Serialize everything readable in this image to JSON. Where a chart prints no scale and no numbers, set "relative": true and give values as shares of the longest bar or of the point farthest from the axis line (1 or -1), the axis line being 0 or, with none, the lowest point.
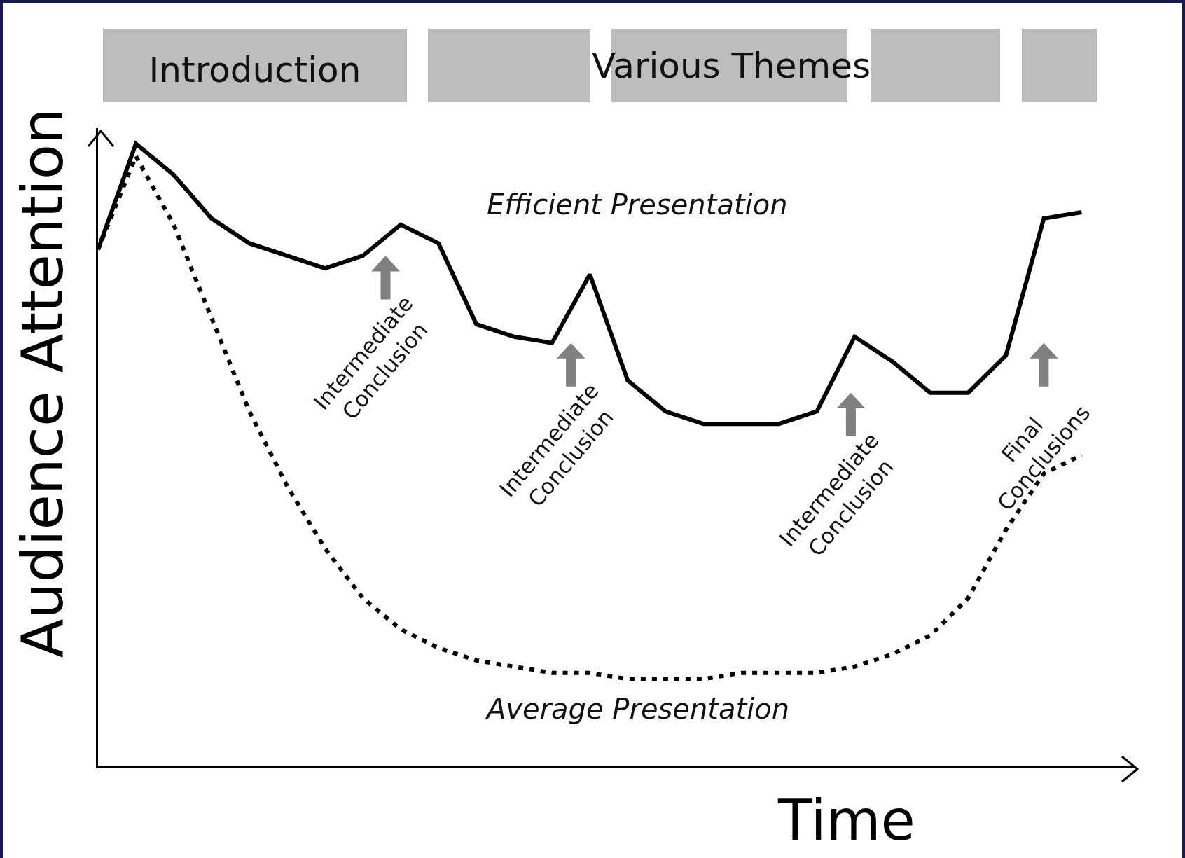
{
  "chart_data": {
    "type": "line",
    "relative": true,
    "ylabel": "Audience Attention",
    "xlabel": "Time",
    "categories": [
      null,
      null,
      null,
      null,
      null,
      null,
      null,
      null,
      null,
      null,
      null,
      null,
      null,
      null,
      null,
      null,
      null,
      null,
      null,
      null,
      null,
      null,
      null,
      null,
      null,
      null,
      null
    ],
    "legend": false,
    "marker": "none",
    "series": [
      {
        "name": "Efficient Presentation",
        "color": "#000000",
        "line_style": "solid",
        "values": [
          0.83,
          1,
          0.95,
          0.88,
          0.84,
          0.82,
          0.8,
          0.82,
          0.87,
          0.84,
          0.71,
          0.69,
          0.68,
          0.79,
          0.62,
          0.57,
          0.55,
          0.55,
          0.55,
          0.57,
          0.69,
          0.65,
          0.6,
          0.6,
          0.66,
          0.88,
          0.89
        ]
      },
      {
        "name": "Average Presentation",
        "color": "#000000",
        "line_style": "dotted",
        "values": [
          0.83,
          0.98,
          0.87,
          0.72,
          0.57,
          0.45,
          0.35,
          0.27,
          0.22,
          0.19,
          0.17,
          0.16,
          0.15,
          0.15,
          0.14,
          0.14,
          0.14,
          0.15,
          0.15,
          0.15,
          0.16,
          0.18,
          0.21,
          0.27,
          0.38,
          0.47,
          0.5
        ]
      }
    ],
    "annotations": [
      "Introduction",
      "Various Themes",
      "Intermediate\nConclusion",
      "Intermediate\nConclusion",
      "Intermediate\nConclusion",
      "Final\nConclusions"
    ]
  }
}
